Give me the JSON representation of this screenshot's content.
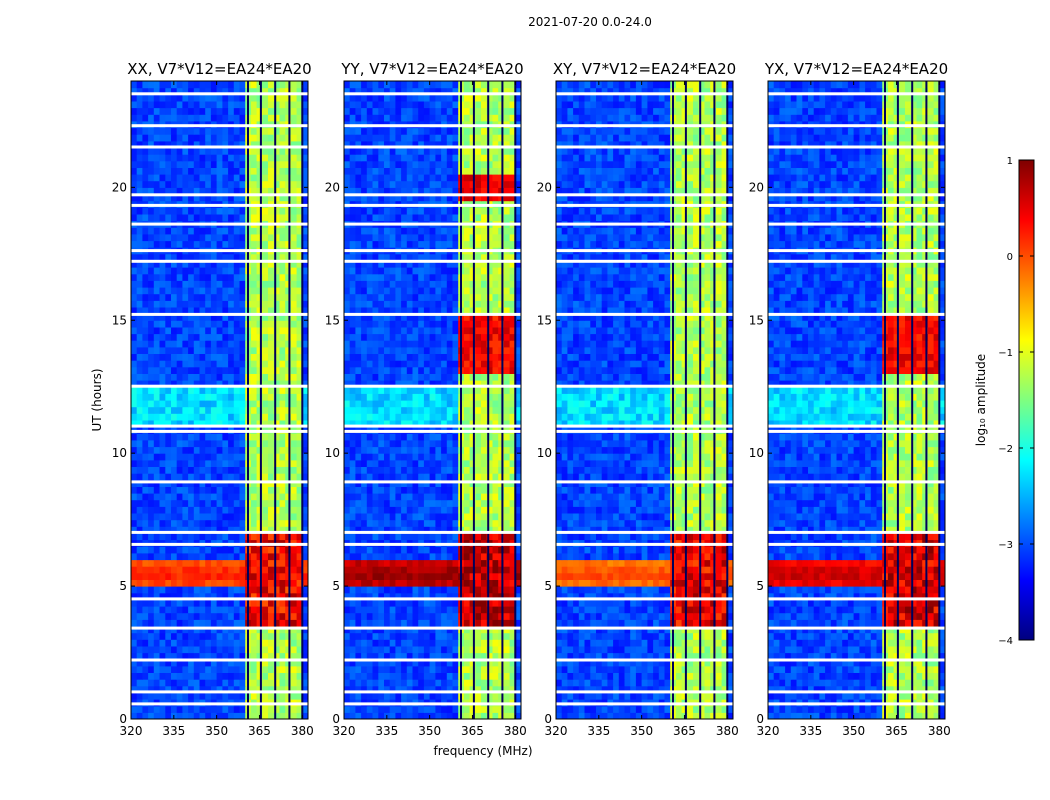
{
  "suptitle": "2021-07-20 0.0-24.0",
  "chart_data": {
    "type": "heatmap",
    "xlabel": "frequency (MHz)",
    "ylabel": "UT (hours)",
    "x_range": [
      320,
      382
    ],
    "y_range": [
      0,
      24
    ],
    "x_ticks": [
      "320",
      "335",
      "350",
      "365",
      "380"
    ],
    "y_ticks": [
      "0",
      "5",
      "10",
      "15",
      "20"
    ],
    "colorbar": {
      "label": "log₁₀ amplitude",
      "range": [
        -4,
        1
      ],
      "ticks": [
        "1",
        "0",
        "−1",
        "−2",
        "−3",
        "−4"
      ]
    },
    "panels": [
      {
        "title": "XX, V7*V12=EA24*EA20",
        "band_peak": 0.1,
        "rfi_peak": 0.55
      },
      {
        "title": "YY, V7*V12=EA24*EA20",
        "band_peak": 0.75,
        "rfi_peak": 0.85
      },
      {
        "title": "XY, V7*V12=EA24*EA20",
        "band_peak": -0.1,
        "rfi_peak": 0.6
      },
      {
        "title": "YX, V7*V12=EA24*EA20",
        "band_peak": 0.5,
        "rfi_peak": 0.7
      }
    ],
    "gap_hours": [
      0.55,
      1.0,
      2.2,
      3.4,
      4.5,
      6.55,
      7.0,
      8.9,
      10.8,
      11.0,
      12.5,
      15.2,
      17.2,
      17.6,
      18.6,
      19.3,
      19.7,
      21.5,
      22.3,
      23.5
    ],
    "channel_edges_mhz": [
      361,
      365.5,
      370.5,
      375.5,
      380
    ]
  }
}
